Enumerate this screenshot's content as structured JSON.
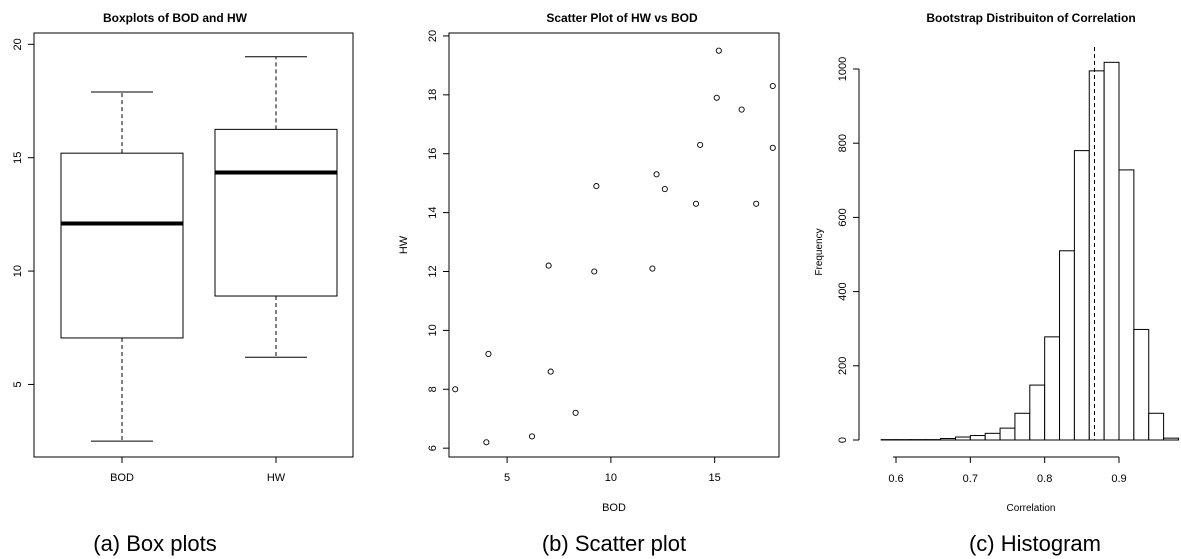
{
  "chart_data": [
    {
      "type": "boxplot",
      "title": "Boxplots of BOD and HW",
      "categories": [
        "BOD",
        "HW"
      ],
      "boxes": [
        {
          "name": "BOD",
          "min": 2.5,
          "q1": 7.05,
          "median": 12.1,
          "q3": 15.2,
          "max": 17.9
        },
        {
          "name": "HW",
          "min": 6.2,
          "q1": 8.9,
          "median": 14.35,
          "q3": 16.25,
          "max": 19.45
        }
      ],
      "ylim": [
        1.8,
        20.5
      ],
      "yticks": [
        5,
        10,
        15,
        20
      ],
      "caption": "(a) Box plots"
    },
    {
      "type": "scatter",
      "title": "Scatter Plot of HW vs BOD",
      "xlabel": "BOD",
      "ylabel": "HW",
      "xlim": [
        2.2,
        18.1
      ],
      "ylim": [
        5.7,
        20.1
      ],
      "xticks": [
        5,
        10,
        15
      ],
      "yticks": [
        6,
        8,
        10,
        12,
        14,
        16,
        18,
        20
      ],
      "points": [
        {
          "x": 2.5,
          "y": 8.0
        },
        {
          "x": 4.0,
          "y": 6.2
        },
        {
          "x": 4.1,
          "y": 9.2
        },
        {
          "x": 6.2,
          "y": 6.4
        },
        {
          "x": 7.0,
          "y": 12.2
        },
        {
          "x": 7.1,
          "y": 8.6
        },
        {
          "x": 8.3,
          "y": 7.2
        },
        {
          "x": 9.2,
          "y": 12.0
        },
        {
          "x": 9.3,
          "y": 14.9
        },
        {
          "x": 12.0,
          "y": 12.1
        },
        {
          "x": 12.2,
          "y": 15.3
        },
        {
          "x": 12.6,
          "y": 14.8
        },
        {
          "x": 14.1,
          "y": 14.3
        },
        {
          "x": 14.3,
          "y": 16.3
        },
        {
          "x": 15.1,
          "y": 17.9
        },
        {
          "x": 15.2,
          "y": 19.5
        },
        {
          "x": 16.3,
          "y": 17.5
        },
        {
          "x": 17.0,
          "y": 14.3
        },
        {
          "x": 17.8,
          "y": 18.3
        },
        {
          "x": 17.8,
          "y": 16.2
        }
      ],
      "caption": "(b) Scatter plot"
    },
    {
      "type": "histogram",
      "title": "Bootstrap Distribuiton of Correlation",
      "xlabel": "Correlation",
      "ylabel": "Frequency",
      "xlim": [
        0.588,
        0.98
      ],
      "ylim": [
        -40,
        1060
      ],
      "xticks": [
        0.6,
        0.7,
        0.8,
        0.9
      ],
      "yticks": [
        0,
        200,
        400,
        600,
        800,
        1000
      ],
      "bin_edges": [
        0.58,
        0.6,
        0.62,
        0.64,
        0.66,
        0.68,
        0.7,
        0.72,
        0.74,
        0.76,
        0.78,
        0.8,
        0.82,
        0.84,
        0.86,
        0.88,
        0.9,
        0.92,
        0.94,
        0.96,
        0.98
      ],
      "counts": [
        1,
        1,
        1,
        1,
        4,
        8,
        12,
        18,
        32,
        72,
        148,
        278,
        510,
        780,
        995,
        1018,
        728,
        298,
        72,
        5
      ],
      "reference_line": 0.867,
      "caption": "(c) Histogram"
    }
  ]
}
